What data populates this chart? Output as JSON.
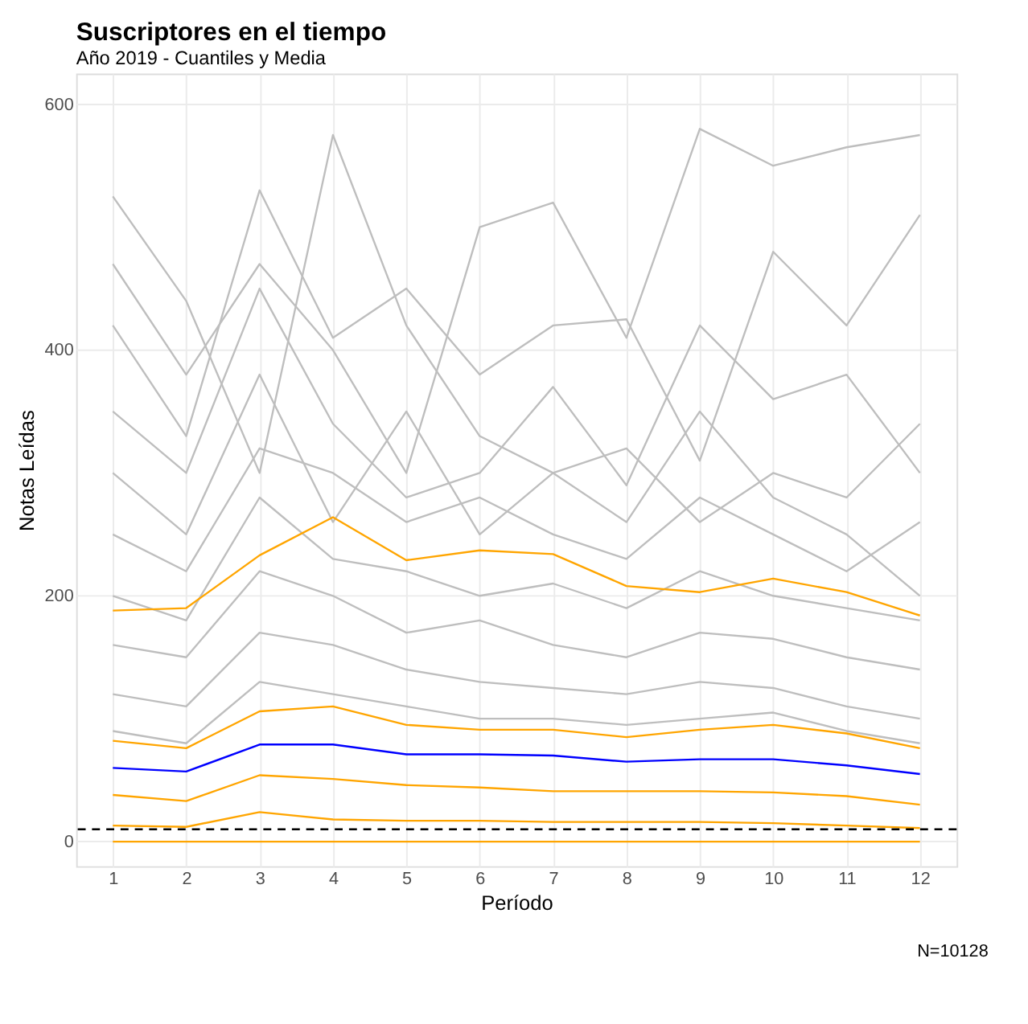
{
  "chart_data": {
    "type": "line",
    "title": "Suscriptores en el tiempo",
    "subtitle": "Año 2019 - Cuantiles y Media",
    "xlabel": "Período",
    "ylabel": "Notas Leídas",
    "x": [
      1,
      2,
      3,
      4,
      5,
      6,
      7,
      8,
      9,
      10,
      11,
      12
    ],
    "xlim": [
      0.5,
      12.5
    ],
    "xticks": [
      1,
      2,
      3,
      4,
      5,
      6,
      7,
      8,
      9,
      10,
      11,
      12
    ],
    "ylim": [
      -20,
      625
    ],
    "yticks": [
      0,
      200,
      400,
      600
    ],
    "grid": true,
    "marker": "none",
    "series": [
      {
        "color": "#bebebe",
        "values": [
          525,
          440,
          300,
          575,
          420,
          330,
          300,
          260,
          350,
          280,
          250,
          200
        ]
      },
      {
        "color": "#bebebe",
        "values": [
          470,
          380,
          470,
          400,
          300,
          500,
          520,
          410,
          580,
          550,
          565,
          575
        ]
      },
      {
        "color": "#bebebe",
        "values": [
          420,
          330,
          530,
          410,
          450,
          380,
          420,
          425,
          310,
          480,
          420,
          510
        ]
      },
      {
        "color": "#bebebe",
        "values": [
          350,
          300,
          450,
          340,
          280,
          300,
          370,
          290,
          420,
          360,
          380,
          300
        ]
      },
      {
        "color": "#bebebe",
        "values": [
          300,
          250,
          380,
          260,
          350,
          250,
          300,
          320,
          260,
          300,
          280,
          340
        ]
      },
      {
        "color": "#bebebe",
        "values": [
          250,
          220,
          320,
          300,
          260,
          280,
          250,
          230,
          280,
          250,
          220,
          260
        ]
      },
      {
        "color": "#bebebe",
        "values": [
          200,
          180,
          280,
          230,
          220,
          200,
          210,
          190,
          220,
          200,
          190,
          180
        ]
      },
      {
        "color": "#bebebe",
        "values": [
          160,
          150,
          220,
          200,
          170,
          180,
          160,
          150,
          170,
          165,
          150,
          140
        ]
      },
      {
        "color": "#bebebe",
        "values": [
          120,
          110,
          170,
          160,
          140,
          130,
          125,
          120,
          130,
          125,
          110,
          100
        ]
      },
      {
        "color": "#bebebe",
        "values": [
          90,
          80,
          130,
          120,
          110,
          100,
          100,
          95,
          100,
          105,
          90,
          80
        ]
      },
      {
        "color": "#ffa500",
        "values": [
          188,
          190,
          233,
          264,
          229,
          237,
          234,
          208,
          203,
          214,
          203,
          184
        ]
      },
      {
        "color": "#ffa500",
        "values": [
          82,
          76,
          106,
          110,
          95,
          91,
          91,
          85,
          91,
          95,
          88,
          76
        ]
      },
      {
        "color": "#0000ff",
        "values": [
          60,
          57,
          79,
          79,
          71,
          71,
          70,
          65,
          67,
          67,
          62,
          55
        ]
      },
      {
        "color": "#ffa500",
        "values": [
          38,
          33,
          54,
          51,
          46,
          44,
          41,
          41,
          41,
          40,
          37,
          30
        ]
      },
      {
        "color": "#ffa500",
        "values": [
          13,
          12,
          24,
          18,
          17,
          17,
          16,
          16,
          16,
          15,
          13,
          11
        ]
      },
      {
        "color": "#ffa500",
        "values": [
          0,
          0,
          0,
          0,
          0,
          0,
          0,
          0,
          0,
          0,
          0,
          0
        ]
      }
    ],
    "ref_lines": [
      {
        "axis": "y",
        "value": 10,
        "color": "#000000",
        "line_style": "dashed"
      }
    ],
    "annotations": [
      "N=10128"
    ]
  }
}
